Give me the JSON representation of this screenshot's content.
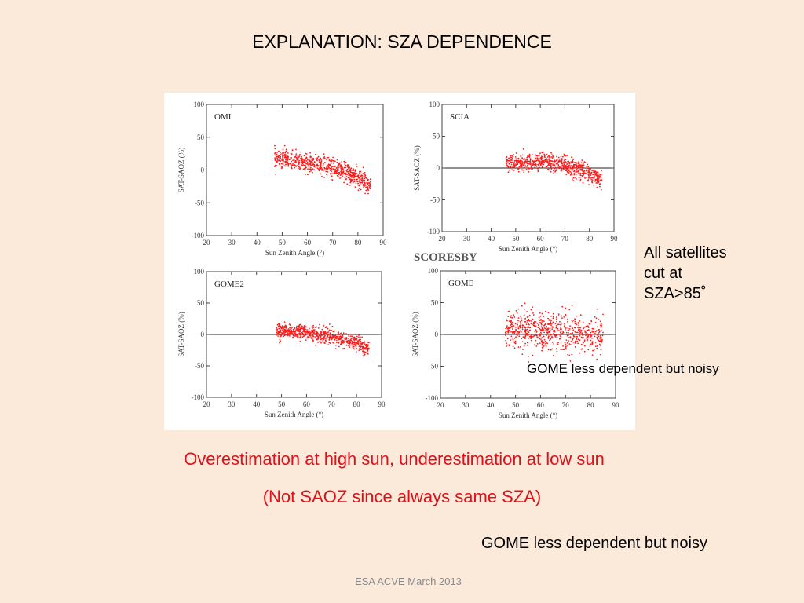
{
  "slide": {
    "title": "EXPLANATION: SZA DEPENDENCE",
    "side_note": [
      "All satellites",
      "cut at",
      "SZA>85˚"
    ],
    "overlay_note": "GOME less dependent but noisy",
    "red_line_1": "Overestimation at high sun, underestimation at low sun",
    "red_line_2": "(Not SAOZ since always same SZA)",
    "bottom_note": "GOME less dependent but noisy",
    "footer": "ESA ACVE March 2013",
    "figure_caption": "SCORESBY"
  },
  "colors": {
    "background": "#fbe9da",
    "points": "#ff1a1a",
    "red_text": "#e0101a"
  },
  "chart_data": [
    {
      "type": "scatter",
      "panel": "OMI",
      "xlabel": "Sun Zenith Angle (°)",
      "ylabel": "SAT-SAOZ (%)",
      "xlim": [
        20,
        90
      ],
      "ylim": [
        -100,
        100
      ],
      "xticks": [
        20,
        30,
        40,
        50,
        60,
        70,
        80,
        90
      ],
      "yticks": [
        -100,
        -50,
        0,
        50,
        100
      ],
      "x_range": [
        47,
        85
      ],
      "trend": {
        "x": [
          47,
          60,
          70,
          78,
          85
        ],
        "y": [
          18,
          10,
          5,
          -8,
          -22
        ]
      },
      "spread": 7
    },
    {
      "type": "scatter",
      "panel": "SCIA",
      "xlabel": "Sun Zenith Angle (°)",
      "ylabel": "SAT-SAOZ (%)",
      "xlim": [
        20,
        90
      ],
      "ylim": [
        -100,
        100
      ],
      "xticks": [
        20,
        30,
        40,
        50,
        60,
        70,
        80,
        90
      ],
      "yticks": [
        -100,
        -50,
        0,
        50,
        100
      ],
      "x_range": [
        46,
        85
      ],
      "trend": {
        "x": [
          46,
          55,
          62,
          72,
          80,
          85
        ],
        "y": [
          10,
          7,
          10,
          2,
          -8,
          -20
        ]
      },
      "spread": 7
    },
    {
      "type": "scatter",
      "panel": "GOME2",
      "xlabel": "Sun Zenith Angle (°)",
      "ylabel": "SAT-SAOZ (%)",
      "xlim": [
        20,
        90
      ],
      "ylim": [
        -100,
        100
      ],
      "xticks": [
        20,
        30,
        40,
        50,
        60,
        70,
        80,
        90
      ],
      "yticks": [
        -100,
        -50,
        0,
        50,
        100
      ],
      "x_range": [
        48,
        85
      ],
      "trend": {
        "x": [
          48,
          60,
          70,
          80,
          85
        ],
        "y": [
          7,
          3,
          -3,
          -15,
          -25
        ]
      },
      "spread": 6
    },
    {
      "type": "scatter",
      "panel": "GOME",
      "xlabel": "Sun Zenith Angle (°)",
      "ylabel": "SAT-SAOZ (%)",
      "xlim": [
        20,
        90
      ],
      "ylim": [
        -100,
        100
      ],
      "xticks": [
        20,
        30,
        40,
        50,
        60,
        70,
        80,
        90
      ],
      "yticks": [
        -100,
        -50,
        0,
        50,
        100
      ],
      "x_range": [
        46,
        85
      ],
      "trend": {
        "x": [
          46,
          65,
          85
        ],
        "y": [
          10,
          5,
          0
        ]
      },
      "spread": 15
    }
  ]
}
